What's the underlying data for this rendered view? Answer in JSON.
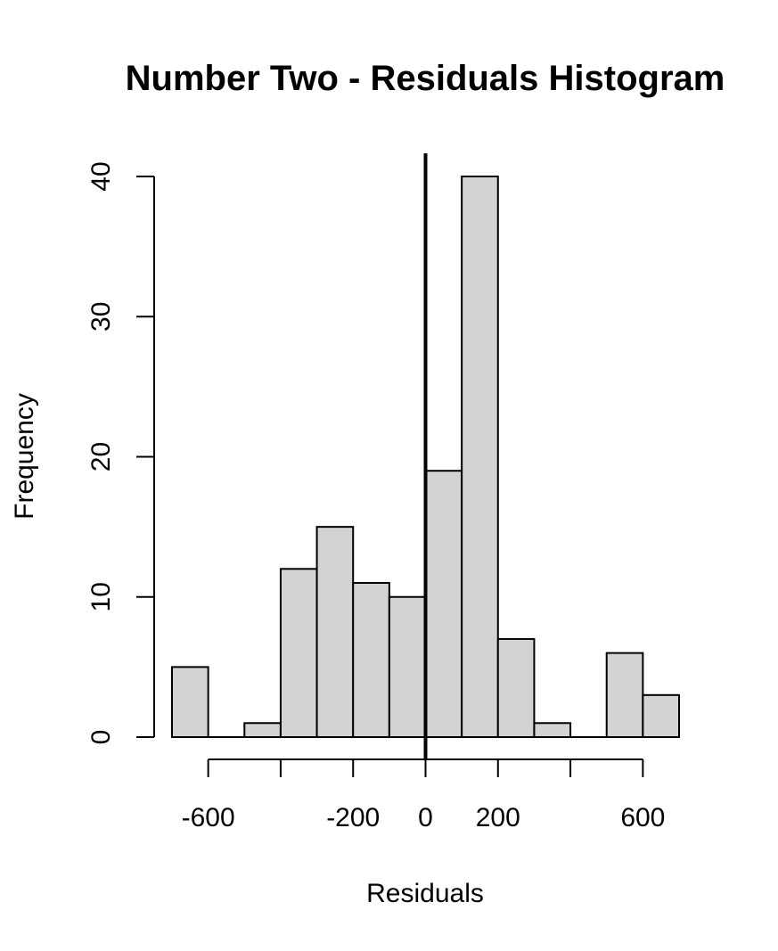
{
  "chart_data": {
    "type": "bar",
    "title": "Number Two - Residuals Histogram",
    "xlabel": "Residuals",
    "ylabel": "Frequency",
    "bin_edges": [
      -700,
      -600,
      -500,
      -400,
      -300,
      -200,
      -100,
      0,
      100,
      200,
      300,
      400,
      500,
      600,
      700
    ],
    "values": [
      5,
      0,
      1,
      12,
      15,
      11,
      10,
      19,
      40,
      7,
      1,
      0,
      6,
      3
    ],
    "xlim": [
      -700,
      700
    ],
    "ylim": [
      0,
      40
    ],
    "x_axis_ticks": [
      -600,
      -400,
      -200,
      0,
      200,
      400,
      600
    ],
    "x_tick_labels": [
      {
        "value": -600,
        "label": "-600"
      },
      {
        "value": -200,
        "label": "-200"
      },
      {
        "value": 0,
        "label": "0"
      },
      {
        "value": 200,
        "label": "200"
      },
      {
        "value": 600,
        "label": "600"
      }
    ],
    "y_ticks": [
      0,
      10,
      20,
      30,
      40
    ],
    "y_tick_labels": [
      "0",
      "10",
      "20",
      "30",
      "40"
    ],
    "reference_line_x": 0,
    "grid": false,
    "colors": {
      "bar_fill": "#d3d3d3",
      "bar_stroke": "#000000"
    }
  }
}
